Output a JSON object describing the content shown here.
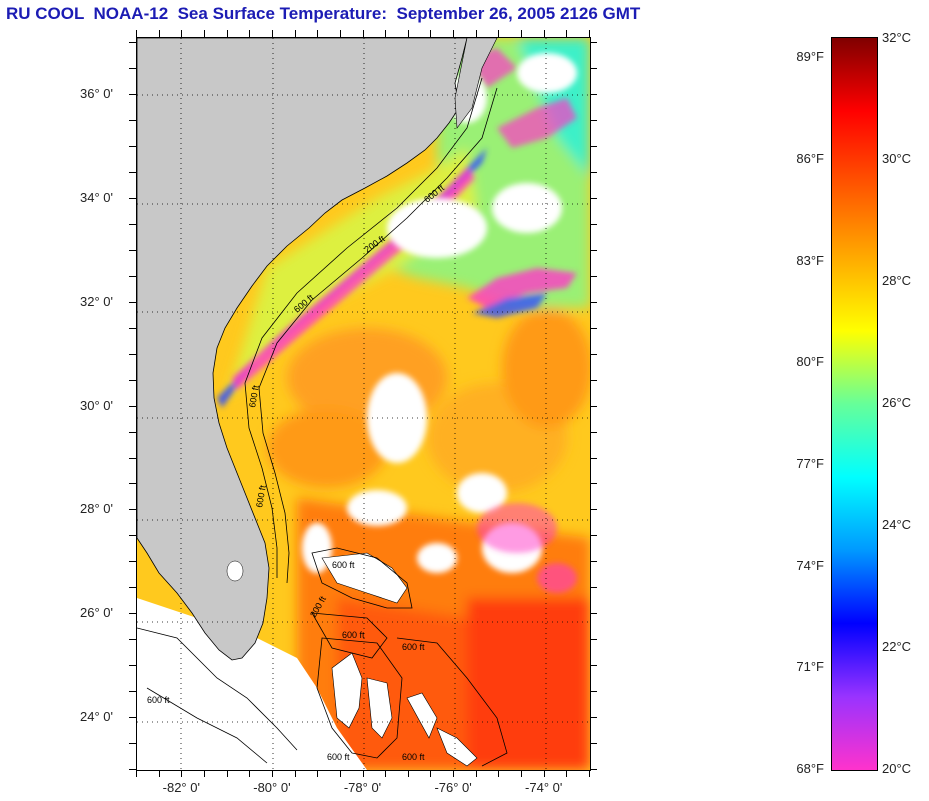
{
  "title": "RU COOL  NOAA-12  Sea Surface Temperature:  September 26, 2005 2126 GMT",
  "map": {
    "lat_labels": [
      {
        "text": "36° 0'",
        "lat": 36
      },
      {
        "text": "34° 0'",
        "lat": 34
      },
      {
        "text": "32° 0'",
        "lat": 32
      },
      {
        "text": "30° 0'",
        "lat": 30
      },
      {
        "text": "28° 0'",
        "lat": 28
      },
      {
        "text": "26° 0'",
        "lat": 26
      },
      {
        "text": "24° 0'",
        "lat": 24
      }
    ],
    "lon_labels": [
      {
        "text": "-82° 0'",
        "lon": -82
      },
      {
        "text": "-80° 0'",
        "lon": -80
      },
      {
        "text": "-78° 0'",
        "lon": -78
      },
      {
        "text": "-76° 0'",
        "lon": -76
      },
      {
        "text": "-74° 0'",
        "lon": -74
      }
    ],
    "lat_range": [
      23.0,
      37.1
    ],
    "lon_range": [
      -83.0,
      -73.0
    ],
    "contour_labels": [
      "600 ft",
      "200 ft",
      "600 ft",
      "600 ft",
      "600 ft",
      "600 ft",
      "200 ft",
      "600 ft",
      "600 ft",
      "600 ft",
      "600 ft",
      "600 ft"
    ]
  },
  "colorbar": {
    "fahrenheit": [
      {
        "text": "89°F",
        "value": 89
      },
      {
        "text": "86°F",
        "value": 86
      },
      {
        "text": "83°F",
        "value": 83
      },
      {
        "text": "80°F",
        "value": 80
      },
      {
        "text": "77°F",
        "value": 77
      },
      {
        "text": "74°F",
        "value": 74
      },
      {
        "text": "71°F",
        "value": 71
      },
      {
        "text": "68°F",
        "value": 68
      }
    ],
    "celsius": [
      {
        "text": "32°C",
        "value": 32
      },
      {
        "text": "30°C",
        "value": 30
      },
      {
        "text": "28°C",
        "value": 28
      },
      {
        "text": "26°C",
        "value": 26
      },
      {
        "text": "24°C",
        "value": 24
      },
      {
        "text": "22°C",
        "value": 22
      },
      {
        "text": "20°C",
        "value": 20
      }
    ],
    "range_c": [
      20,
      32
    ],
    "colors": [
      "#ff33cc",
      "#9933ff",
      "#0000ff",
      "#0099ff",
      "#00ffff",
      "#66ff99",
      "#ffff00",
      "#ffaa00",
      "#ff5500",
      "#ff0000",
      "#800000"
    ]
  },
  "colors": {
    "land": "#c8c8c8",
    "no_data": "#ffffff",
    "title": "#1c1cb4"
  }
}
